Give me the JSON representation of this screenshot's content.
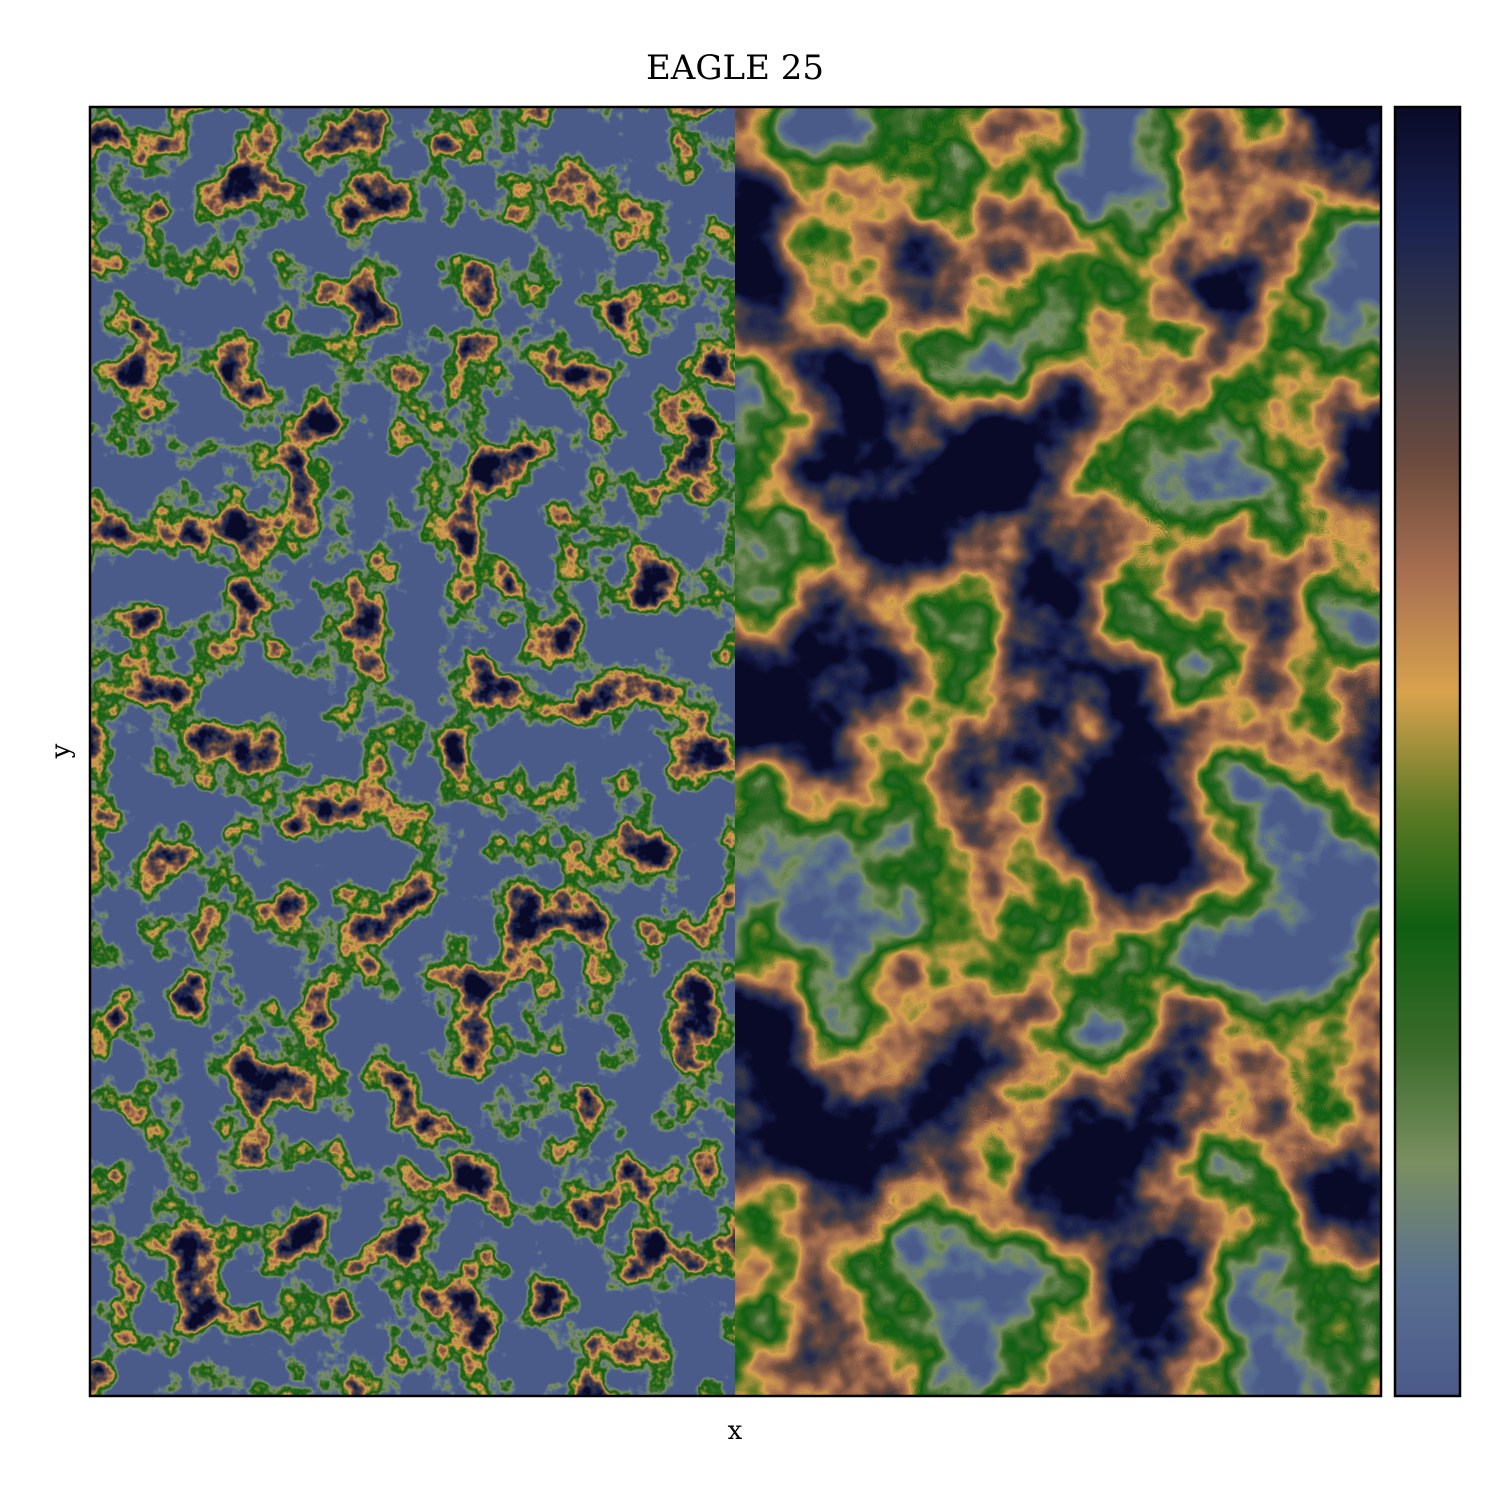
{
  "chart_data": {
    "type": "image",
    "title": "EAGLE 25",
    "x_label": "x",
    "y_label": "y",
    "colormap": [
      "#4b5a8a",
      "#5a7090",
      "#7a8f60",
      "#3a6a2a",
      "#0f5f12",
      "#5e7a25",
      "#d8a24e",
      "#a87050",
      "#6a4a3e",
      "#3a3a48",
      "#1a2350",
      "#0a0a28"
    ],
    "colorbar": true
  }
}
